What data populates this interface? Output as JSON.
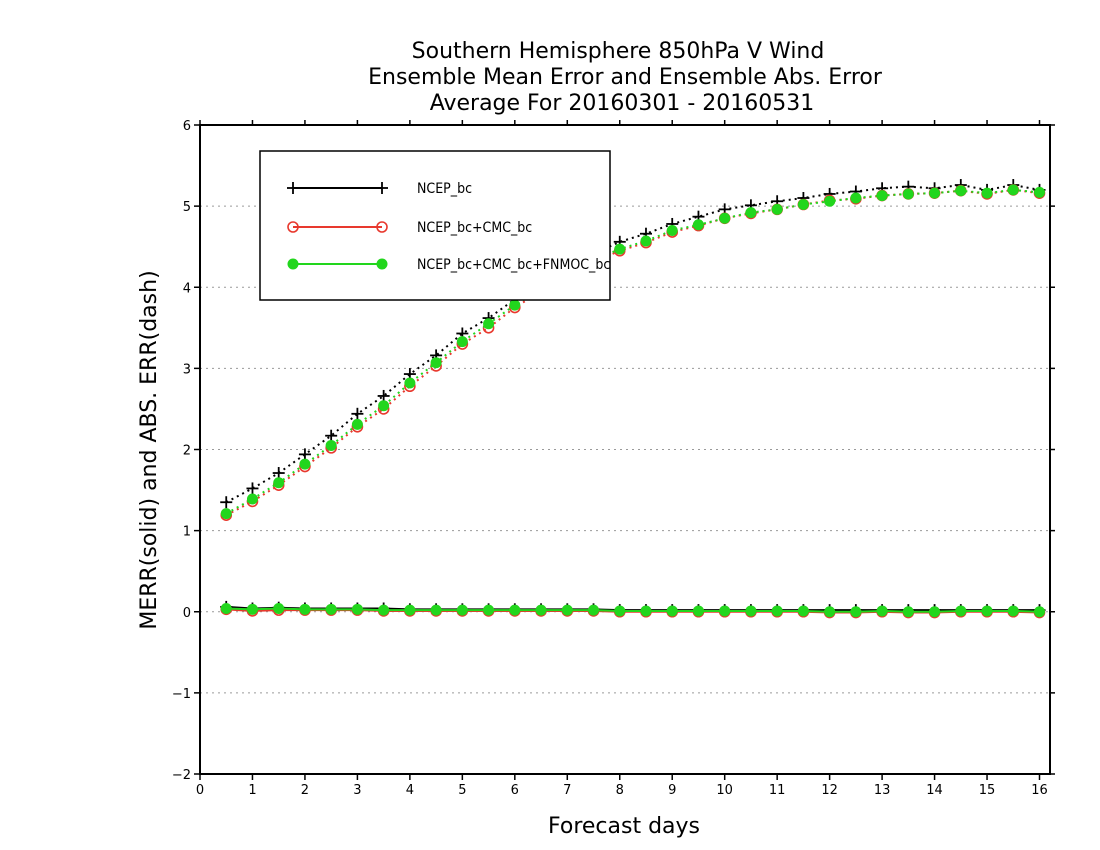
{
  "chart_data": {
    "type": "line",
    "title_lines": [
      "Southern Hemisphere 850hPa V Wind",
      "Ensemble Mean Error and Ensemble Abs. Error",
      "Average For 20160301 - 20160531"
    ],
    "xlabel": "Forecast days",
    "ylabel": "MERR(solid) and ABS. ERR(dash)",
    "xlim": [
      0,
      16.2
    ],
    "ylim": [
      -2,
      6
    ],
    "xticks": [
      0,
      1,
      2,
      3,
      4,
      5,
      6,
      7,
      8,
      9,
      10,
      11,
      12,
      13,
      14,
      15,
      16
    ],
    "yticks": [
      -2,
      -1,
      0,
      1,
      2,
      3,
      4,
      5,
      6
    ],
    "grid": "horizontal dotted",
    "legend_position": "top-left",
    "x": [
      0.5,
      1,
      1.5,
      2,
      2.5,
      3,
      3.5,
      4,
      4.5,
      5,
      5.5,
      6,
      6.5,
      7,
      7.5,
      8,
      8.5,
      9,
      9.5,
      10,
      10.5,
      11,
      11.5,
      12,
      12.5,
      13,
      13.5,
      14,
      14.5,
      15,
      15.5,
      16
    ],
    "series": [
      {
        "name": "NCEP_bc",
        "color": "#000000",
        "marker": "plus",
        "merr": [
          0.06,
          0.04,
          0.05,
          0.04,
          0.04,
          0.04,
          0.04,
          0.03,
          0.03,
          0.03,
          0.03,
          0.03,
          0.03,
          0.03,
          0.03,
          0.02,
          0.02,
          0.02,
          0.02,
          0.02,
          0.02,
          0.02,
          0.02,
          0.02,
          0.02,
          0.02,
          0.02,
          0.02,
          0.02,
          0.02,
          0.02,
          0.02
        ],
        "abs_err": [
          1.35,
          1.52,
          1.71,
          1.94,
          2.17,
          2.44,
          2.66,
          2.93,
          3.16,
          3.43,
          3.62,
          3.85,
          4.05,
          4.22,
          4.41,
          4.56,
          4.66,
          4.78,
          4.87,
          4.96,
          5.01,
          5.06,
          5.1,
          5.15,
          5.18,
          5.22,
          5.24,
          5.22,
          5.26,
          5.2,
          5.26,
          5.2
        ]
      },
      {
        "name": "NCEP_bc+CMC_bc",
        "color": "#e8392e",
        "marker": "open-circle",
        "merr": [
          0.03,
          0.01,
          0.02,
          0.02,
          0.02,
          0.02,
          0.01,
          0.01,
          0.01,
          0.01,
          0.01,
          0.01,
          0.01,
          0.01,
          0.01,
          0.0,
          0.0,
          0.0,
          0.0,
          0.0,
          0.0,
          0.0,
          0.0,
          -0.01,
          -0.01,
          0.0,
          -0.01,
          -0.01,
          0.0,
          0.0,
          0.0,
          -0.01
        ],
        "abs_err": [
          1.19,
          1.36,
          1.56,
          1.79,
          2.02,
          2.28,
          2.5,
          2.78,
          3.03,
          3.3,
          3.5,
          3.75,
          3.95,
          4.12,
          4.31,
          4.45,
          4.55,
          4.68,
          4.76,
          4.85,
          4.91,
          4.96,
          5.02,
          5.07,
          5.09,
          5.13,
          5.15,
          5.16,
          5.19,
          5.15,
          5.2,
          5.16
        ]
      },
      {
        "name": "NCEP_bc+CMC_bc+FNMOC_bc",
        "color": "#22d61d",
        "marker": "filled-circle",
        "merr": [
          0.04,
          0.03,
          0.04,
          0.03,
          0.03,
          0.03,
          0.02,
          0.02,
          0.02,
          0.02,
          0.02,
          0.02,
          0.02,
          0.02,
          0.02,
          0.01,
          0.01,
          0.01,
          0.01,
          0.01,
          0.01,
          0.01,
          0.01,
          0.0,
          0.0,
          0.01,
          0.0,
          0.0,
          0.01,
          0.01,
          0.01,
          0.0
        ],
        "abs_err": [
          1.21,
          1.39,
          1.59,
          1.82,
          2.05,
          2.31,
          2.54,
          2.82,
          3.07,
          3.33,
          3.55,
          3.78,
          3.98,
          4.15,
          4.34,
          4.47,
          4.57,
          4.7,
          4.77,
          4.85,
          4.92,
          4.96,
          5.02,
          5.06,
          5.1,
          5.13,
          5.15,
          5.16,
          5.19,
          5.16,
          5.2,
          5.17
        ]
      }
    ]
  }
}
